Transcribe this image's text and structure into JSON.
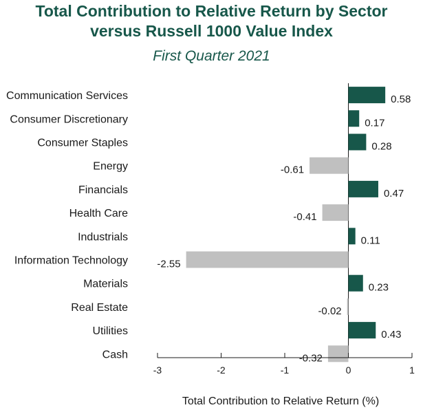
{
  "chart_data": {
    "type": "bar",
    "orientation": "horizontal",
    "title": "Total Contribution to Relative Return by Sector versus Russell 1000 Value Index",
    "title_lines": [
      "Total Contribution to Relative Return by Sector",
      "versus Russell 1000 Value Index"
    ],
    "subtitle": "First Quarter 2021",
    "xlabel": "Total Contribution to Relative Return (%)",
    "ylabel": "",
    "categories": [
      "Communication Services",
      "Consumer Discretionary",
      "Consumer Staples",
      "Energy",
      "Financials",
      "Health Care",
      "Industrials",
      "Information Technology",
      "Materials",
      "Real Estate",
      "Utilities",
      "Cash"
    ],
    "values": [
      0.58,
      0.17,
      0.28,
      -0.61,
      0.47,
      -0.41,
      0.11,
      -2.55,
      0.23,
      -0.02,
      0.43,
      -0.32
    ],
    "value_labels": [
      "0.58",
      "0.17",
      "0.28",
      "-0.61",
      "0.47",
      "-0.41",
      "0.11",
      "-2.55",
      "0.23",
      "-0.02",
      "0.43",
      "-0.32"
    ],
    "xlim": [
      -3,
      1
    ],
    "xticks": [
      -3,
      -2,
      -1,
      0,
      1
    ],
    "xtick_labels": [
      "-3",
      "-2",
      "-1",
      "0",
      "1"
    ],
    "grid": false,
    "legend": "none",
    "colors": {
      "positive": "#17574a",
      "negative": "#c0c0c0",
      "title": "#17574a",
      "axis": "#1a1a1a"
    }
  }
}
